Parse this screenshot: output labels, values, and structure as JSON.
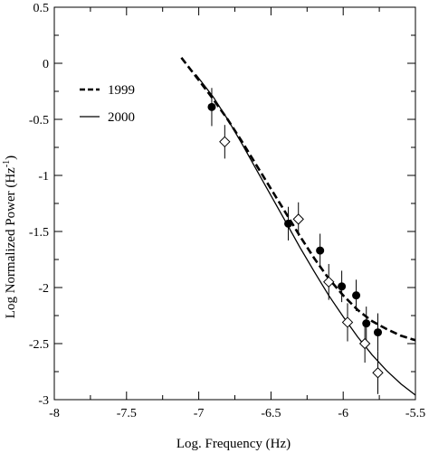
{
  "chart_data": {
    "type": "scatter",
    "xlabel": "Log. Frequency (Hz)",
    "ylabel": "Log Normalized Power (Hz",
    "ylabel_sup": "-1",
    "ylabel_close": ")",
    "xlim": [
      -8,
      -5.5
    ],
    "ylim": [
      -3,
      0.5
    ],
    "xticks": [
      -8,
      -7.5,
      -7,
      -6.5,
      -6,
      -5.5
    ],
    "xtick_labels": [
      "-8",
      "-7.5",
      "-7",
      "-6.5",
      "-6",
      "-5.5"
    ],
    "yticks": [
      -3,
      -2.5,
      -2,
      -1.5,
      -1,
      -0.5,
      0,
      0.5
    ],
    "ytick_labels": [
      "-3",
      "-2.5",
      "-2",
      "-1.5",
      "-1",
      "-0.5",
      "0",
      "0.5"
    ],
    "legend_position": "upper-left",
    "legend": [
      {
        "label": "1999",
        "style": "dashed"
      },
      {
        "label": "2000",
        "style": "solid"
      }
    ],
    "series": [
      {
        "name": "1999",
        "marker": "filled-circle",
        "points": [
          {
            "x": -6.91,
            "y": -0.39,
            "err": 0.17
          },
          {
            "x": -6.38,
            "y": -1.43,
            "err": 0.15
          },
          {
            "x": -6.16,
            "y": -1.67,
            "err": 0.15
          },
          {
            "x": -6.01,
            "y": -1.99,
            "err": 0.14
          },
          {
            "x": -5.91,
            "y": -2.07,
            "err": 0.14
          },
          {
            "x": -5.84,
            "y": -2.32,
            "err": 0.15
          },
          {
            "x": -5.76,
            "y": -2.4,
            "err": 0.17
          }
        ]
      },
      {
        "name": "2000",
        "marker": "open-diamond",
        "points": [
          {
            "x": -6.82,
            "y": -0.7,
            "err": 0.15
          },
          {
            "x": -6.31,
            "y": -1.39,
            "err": 0.15
          },
          {
            "x": -6.1,
            "y": -1.95,
            "err": 0.16
          },
          {
            "x": -5.97,
            "y": -2.31,
            "err": 0.17
          },
          {
            "x": -5.85,
            "y": -2.5,
            "err": 0.17
          },
          {
            "x": -5.76,
            "y": -2.76,
            "err": 0.19
          }
        ]
      }
    ],
    "fit_lines": [
      {
        "name": "1999",
        "style": "dashed",
        "x": [
          -7.12,
          -7.0,
          -6.9,
          -6.8,
          -6.7,
          -6.6,
          -6.5,
          -6.4,
          -6.3,
          -6.2,
          -6.1,
          -6.0,
          -5.9,
          -5.8,
          -5.7,
          -5.6,
          -5.5
        ],
        "y": [
          0.05,
          -0.15,
          -0.32,
          -0.5,
          -0.7,
          -0.91,
          -1.12,
          -1.33,
          -1.54,
          -1.74,
          -1.92,
          -2.07,
          -2.2,
          -2.3,
          -2.37,
          -2.43,
          -2.47
        ]
      },
      {
        "name": "2000",
        "style": "solid",
        "x": [
          -7.02,
          -6.9,
          -6.8,
          -6.7,
          -6.6,
          -6.5,
          -6.4,
          -6.3,
          -6.2,
          -6.1,
          -6.0,
          -5.9,
          -5.8,
          -5.7,
          -5.6,
          -5.5
        ],
        "y": [
          -0.1,
          -0.3,
          -0.5,
          -0.72,
          -0.95,
          -1.18,
          -1.41,
          -1.64,
          -1.86,
          -2.07,
          -2.26,
          -2.44,
          -2.6,
          -2.74,
          -2.86,
          -2.96
        ]
      }
    ]
  }
}
